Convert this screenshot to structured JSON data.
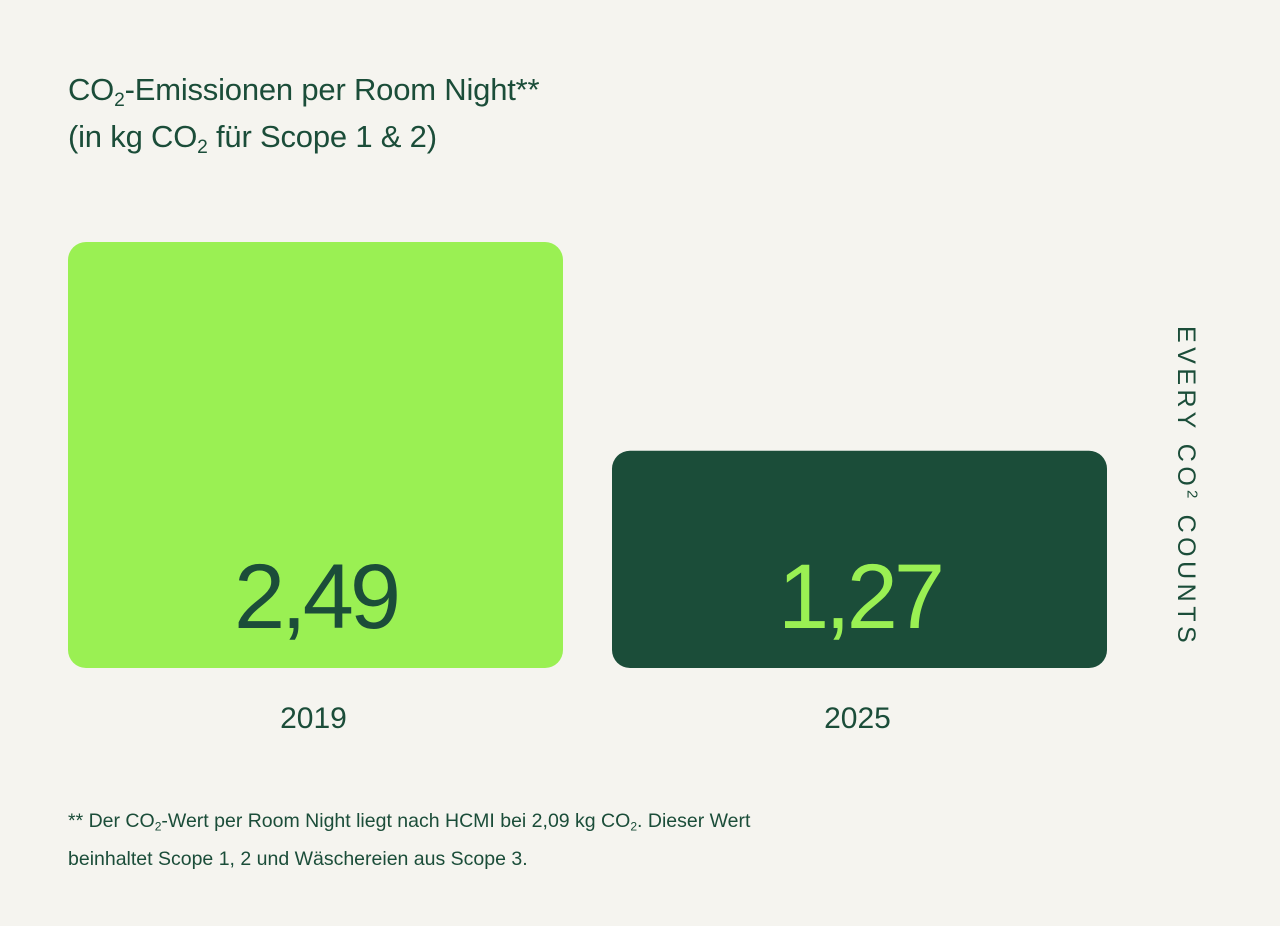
{
  "title": {
    "line1_a": "CO",
    "line1_sub": "2",
    "line1_b": "-Emissionen per Room Night**",
    "line2_a": "(in kg CO",
    "line2_sub": "2",
    "line2_b": " für Scope 1 & 2)"
  },
  "side_label": {
    "part_a": "EVERY CO",
    "part_sub": "2",
    "part_b": " COUNTS"
  },
  "footnote": {
    "line1_a": "** Der CO",
    "line1_sub": "2",
    "line1_b": "-Wert per Room Night liegt nach HCMI bei 2,09 kg CO",
    "line1_sub2": "2",
    "line1_c": ". Dieser Wert",
    "line2": "beinhaltet Scope 1, 2 und Wäschereien aus Scope 3."
  },
  "colors": {
    "background": "#f5f4ef",
    "dark_green": "#1b4d39",
    "light_green": "#9af053"
  },
  "chart_data": {
    "type": "bar",
    "categories": [
      "2019",
      "2025"
    ],
    "values": [
      2.49,
      1.27
    ],
    "value_labels": [
      "2,49",
      "1,27"
    ],
    "bar_colors": [
      "#9af053",
      "#1b4d39"
    ],
    "label_colors": [
      "#1b4d39",
      "#9af053"
    ],
    "ylim": [
      0,
      2.49
    ],
    "grid": false
  }
}
